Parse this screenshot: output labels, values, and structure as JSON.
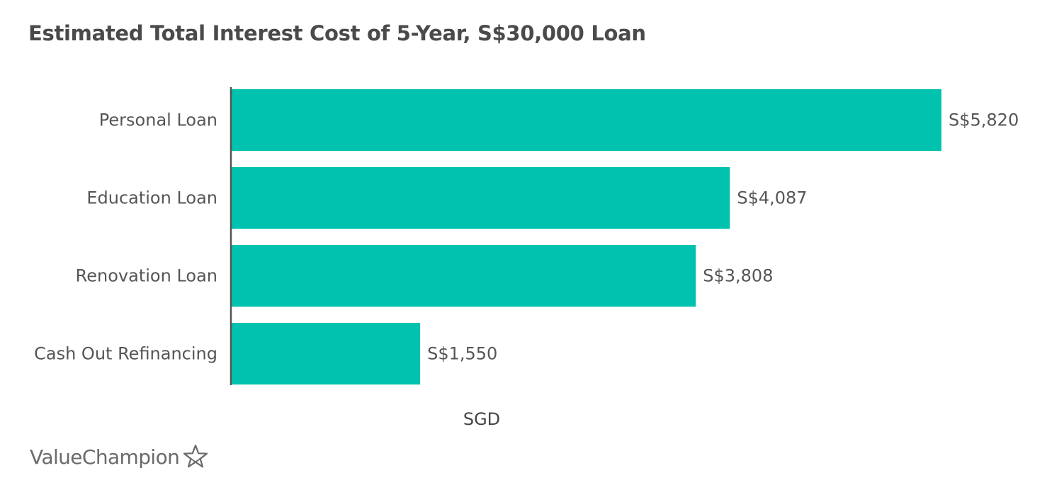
{
  "chart_data": {
    "type": "bar",
    "orientation": "horizontal",
    "title": "Estimated Total Interest Cost of 5-Year, S$30,000 Loan",
    "xlabel": "SGD",
    "ylabel": "",
    "categories": [
      "Personal Loan",
      "Education Loan",
      "Renovation Loan",
      "Cash Out Refinancing"
    ],
    "values": [
      5820,
      4087,
      3808,
      1550
    ],
    "value_labels": [
      "S$5,820",
      "S$4,087",
      "S$3,808",
      "S$1,550"
    ],
    "xlim": [
      0,
      5820
    ],
    "grid": false,
    "legend": "none",
    "bar_color": "#00c2ae",
    "axis_color": "#555555"
  },
  "brand": {
    "name": "ValueChampion",
    "logo_icon": "star-outline-icon"
  }
}
